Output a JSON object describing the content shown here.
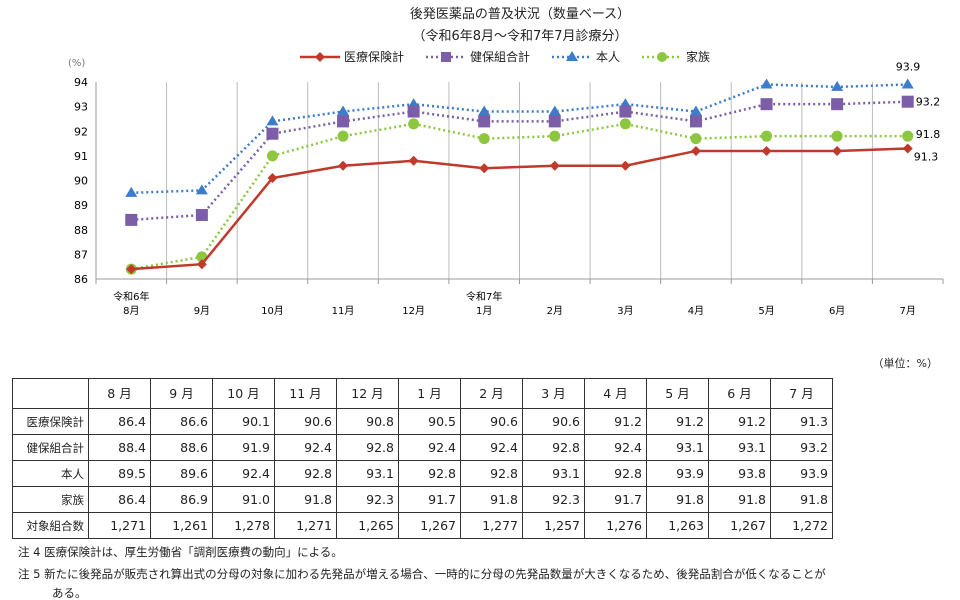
{
  "chart_data": {
    "type": "line",
    "title": "後発医薬品の普及状況（数量ベース）",
    "subtitle": "（令和6年8月～令和7年7月診療分）",
    "ylabel": "(%)",
    "ylim": [
      86,
      94
    ],
    "yticks": [
      "86",
      "87",
      "88",
      "89",
      "90",
      "91",
      "92",
      "93",
      "94"
    ],
    "grid": "vertical",
    "legend": "top",
    "categories": [
      {
        "top": "令和6年",
        "label": "8月"
      },
      {
        "top": "",
        "label": "9月"
      },
      {
        "top": "",
        "label": "10月"
      },
      {
        "top": "",
        "label": "11月"
      },
      {
        "top": "",
        "label": "12月"
      },
      {
        "top": "令和7年",
        "label": "1月"
      },
      {
        "top": "",
        "label": "2月"
      },
      {
        "top": "",
        "label": "3月"
      },
      {
        "top": "",
        "label": "4月"
      },
      {
        "top": "",
        "label": "5月"
      },
      {
        "top": "",
        "label": "6月"
      },
      {
        "top": "",
        "label": "7月"
      }
    ],
    "series": [
      {
        "name": "医療保険計",
        "color": "#c0392b",
        "marker": "diamond",
        "style": "solid",
        "values": [
          86.4,
          86.6,
          90.1,
          90.6,
          90.8,
          90.5,
          90.6,
          90.6,
          91.2,
          91.2,
          91.2,
          91.3
        ],
        "end_label": "91.3"
      },
      {
        "name": "健保組合計",
        "color": "#7b5ea7",
        "marker": "square",
        "style": "dotted",
        "values": [
          88.4,
          88.6,
          91.9,
          92.4,
          92.8,
          92.4,
          92.4,
          92.8,
          92.4,
          93.1,
          93.1,
          93.2
        ],
        "end_label": "93.2"
      },
      {
        "name": "本人",
        "color": "#3d7cc9",
        "marker": "triangle",
        "style": "dotted",
        "values": [
          89.5,
          89.6,
          92.4,
          92.8,
          93.1,
          92.8,
          92.8,
          93.1,
          92.8,
          93.9,
          93.8,
          93.9
        ],
        "end_label": "93.9"
      },
      {
        "name": "家族",
        "color": "#8dc63f",
        "marker": "circle",
        "style": "dotted",
        "values": [
          86.4,
          86.9,
          91.0,
          91.8,
          92.3,
          91.7,
          91.8,
          92.3,
          91.7,
          91.8,
          91.8,
          91.8
        ],
        "end_label": "91.8"
      }
    ]
  },
  "table": {
    "unit": "（単位：%）",
    "headers": [
      "8 月",
      "9 月",
      "10 月",
      "11 月",
      "12 月",
      "1 月",
      "2 月",
      "3 月",
      "4 月",
      "5 月",
      "6 月",
      "7 月"
    ],
    "rows": [
      {
        "label": "医療保険計",
        "values": [
          "86.4",
          "86.6",
          "90.1",
          "90.6",
          "90.8",
          "90.5",
          "90.6",
          "90.6",
          "91.2",
          "91.2",
          "91.2",
          "91.3"
        ]
      },
      {
        "label": "健保組合計",
        "values": [
          "88.4",
          "88.6",
          "91.9",
          "92.4",
          "92.8",
          "92.4",
          "92.4",
          "92.8",
          "92.4",
          "93.1",
          "93.1",
          "93.2"
        ]
      },
      {
        "label": "本人",
        "values": [
          "89.5",
          "89.6",
          "92.4",
          "92.8",
          "93.1",
          "92.8",
          "92.8",
          "93.1",
          "92.8",
          "93.9",
          "93.8",
          "93.9"
        ]
      },
      {
        "label": "家族",
        "values": [
          "86.4",
          "86.9",
          "91.0",
          "91.8",
          "92.3",
          "91.7",
          "91.8",
          "92.3",
          "91.7",
          "91.8",
          "91.8",
          "91.8"
        ]
      },
      {
        "label": "対象組合数",
        "values": [
          "1,271",
          "1,261",
          "1,278",
          "1,271",
          "1,265",
          "1,267",
          "1,277",
          "1,257",
          "1,276",
          "1,263",
          "1,267",
          "1,272"
        ]
      }
    ]
  },
  "notes": [
    "注 4  医療保険計は、厚生労働省「調剤医療費の動向」による。",
    "注 5  新たに後発品が販売され算出式の分母の対象に加わる先発品が増える場合、一時的に分母の先発品数量が大きくなるため、後発品割合が低くなることが",
    "ある。"
  ]
}
